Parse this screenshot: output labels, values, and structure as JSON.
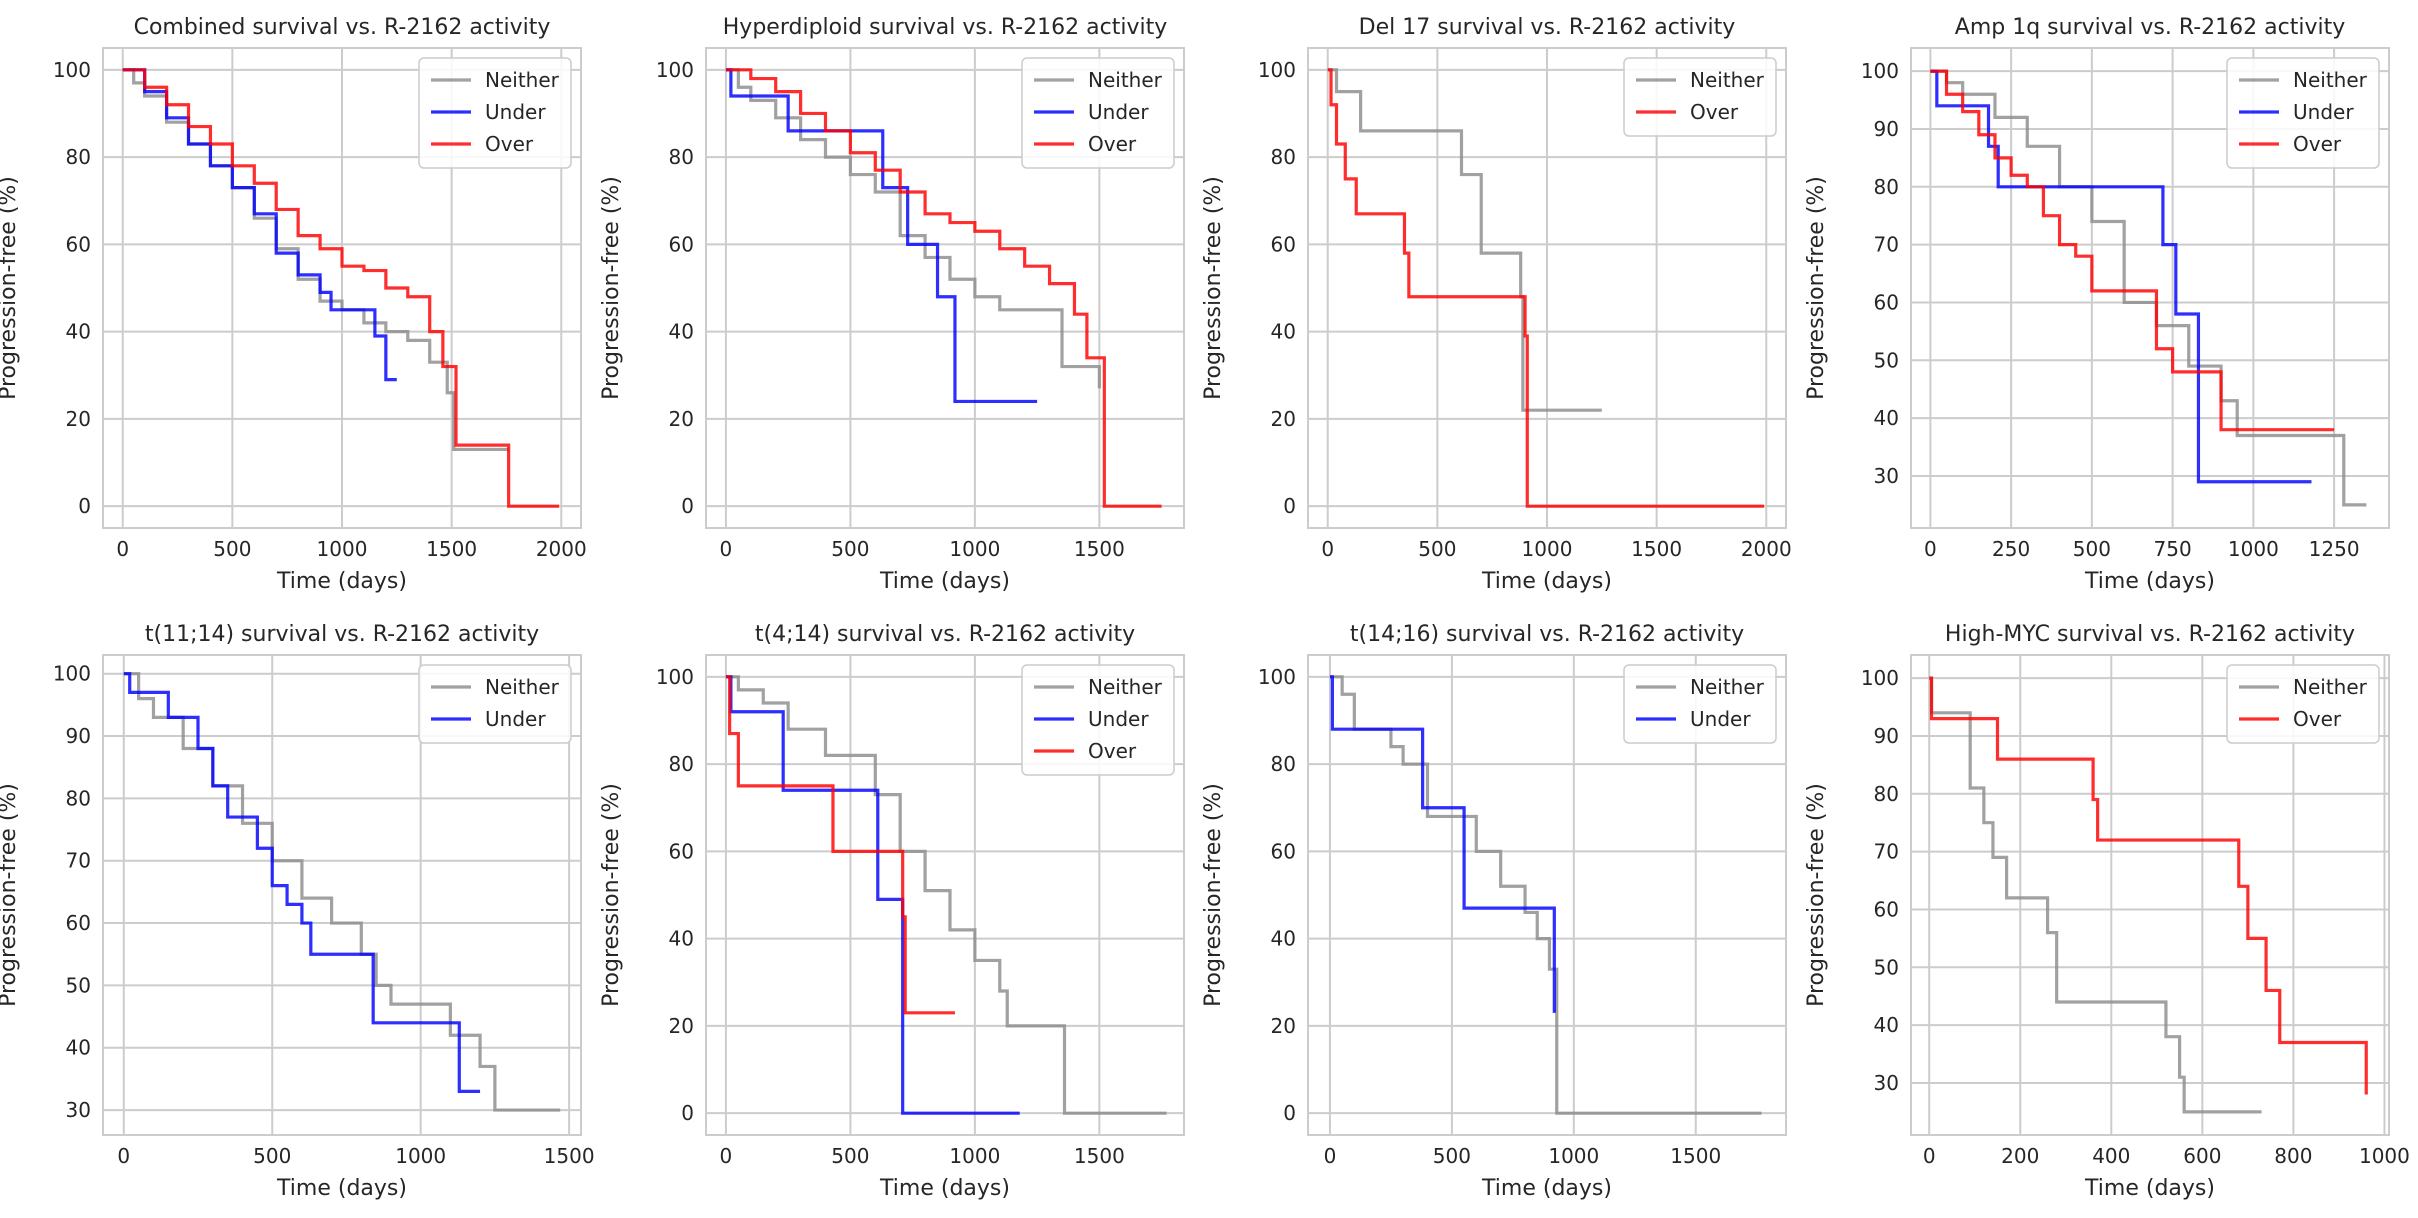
{
  "figure": {
    "background": "#ffffff",
    "colors": {
      "Neither": "#8c8c8c",
      "Under": "#0000ff",
      "Over": "#ff0000"
    }
  },
  "chart_data": [
    {
      "type": "line",
      "title": "Combined survival vs. R-2162 activity",
      "xlabel": "Time (days)",
      "ylabel": "Progression-free (%)",
      "xlim": [
        -90,
        2090
      ],
      "ylim": [
        -5,
        105
      ],
      "xticks": [
        0,
        500,
        1000,
        1500,
        2000
      ],
      "yticks": [
        0,
        20,
        40,
        60,
        80,
        100
      ],
      "grid": true,
      "legend_position": "top-right",
      "series": [
        {
          "name": "Neither",
          "color": "#8c8c8c",
          "x": [
            0,
            50,
            100,
            200,
            300,
            400,
            500,
            600,
            700,
            800,
            900,
            1000,
            1100,
            1200,
            1300,
            1400,
            1480,
            1510,
            1760
          ],
          "y": [
            100,
            97,
            94,
            88,
            83,
            78,
            73,
            66,
            59,
            52,
            47,
            45,
            42,
            40,
            38,
            33,
            26,
            13,
            13
          ]
        },
        {
          "name": "Under",
          "color": "#0000ff",
          "x": [
            0,
            100,
            200,
            300,
            400,
            500,
            600,
            700,
            800,
            900,
            950,
            1100,
            1150,
            1200,
            1250
          ],
          "y": [
            100,
            95,
            89,
            83,
            78,
            73,
            67,
            58,
            53,
            49,
            45,
            45,
            39,
            29,
            29
          ]
        },
        {
          "name": "Over",
          "color": "#ff0000",
          "x": [
            0,
            100,
            200,
            300,
            400,
            500,
            600,
            700,
            800,
            900,
            1000,
            1100,
            1200,
            1300,
            1400,
            1460,
            1520,
            1760,
            1990
          ],
          "y": [
            100,
            96,
            92,
            87,
            83,
            78,
            74,
            68,
            62,
            59,
            55,
            54,
            50,
            48,
            40,
            32,
            14,
            0,
            0
          ]
        }
      ]
    },
    {
      "type": "line",
      "title": "Hyperdiploid survival vs. R-2162 activity",
      "xlabel": "Time (days)",
      "ylabel": "Progression-free (%)",
      "xlim": [
        -80,
        1840
      ],
      "ylim": [
        -5,
        105
      ],
      "xticks": [
        0,
        500,
        1000,
        1500
      ],
      "yticks": [
        0,
        20,
        40,
        60,
        80,
        100
      ],
      "grid": true,
      "legend_position": "top-right",
      "series": [
        {
          "name": "Neither",
          "color": "#8c8c8c",
          "x": [
            0,
            50,
            100,
            200,
            300,
            400,
            500,
            600,
            700,
            800,
            900,
            1000,
            1100,
            1200,
            1300,
            1350,
            1400,
            1500
          ],
          "y": [
            100,
            96,
            93,
            89,
            84,
            80,
            76,
            72,
            62,
            57,
            52,
            48,
            45,
            45,
            45,
            32,
            32,
            27
          ]
        },
        {
          "name": "Under",
          "color": "#0000ff",
          "x": [
            0,
            20,
            250,
            500,
            630,
            730,
            850,
            920,
            1250
          ],
          "y": [
            100,
            94,
            86,
            86,
            73,
            60,
            48,
            24,
            24
          ]
        },
        {
          "name": "Over",
          "color": "#ff0000",
          "x": [
            0,
            100,
            200,
            300,
            400,
            500,
            600,
            700,
            800,
            900,
            1000,
            1100,
            1200,
            1300,
            1400,
            1450,
            1520,
            1750
          ],
          "y": [
            100,
            98,
            95,
            90,
            86,
            81,
            77,
            72,
            67,
            65,
            63,
            59,
            55,
            51,
            44,
            34,
            0,
            0
          ]
        }
      ]
    },
    {
      "type": "line",
      "title": "Del 17 survival vs. R-2162 activity",
      "xlabel": "Time (days)",
      "ylabel": "Progression-free (%)",
      "xlim": [
        -90,
        2090
      ],
      "ylim": [
        -5,
        105
      ],
      "xticks": [
        0,
        500,
        1000,
        1500,
        2000
      ],
      "yticks": [
        0,
        20,
        40,
        60,
        80,
        100
      ],
      "grid": true,
      "legend_position": "top-right",
      "series": [
        {
          "name": "Neither",
          "color": "#8c8c8c",
          "x": [
            0,
            40,
            150,
            550,
            610,
            700,
            850,
            880,
            890,
            1250
          ],
          "y": [
            100,
            95,
            86,
            86,
            76,
            58,
            58,
            48,
            22,
            22
          ]
        },
        {
          "name": "Over",
          "color": "#ff0000",
          "x": [
            0,
            15,
            40,
            80,
            130,
            350,
            370,
            880,
            900,
            910,
            1990
          ],
          "y": [
            100,
            92,
            83,
            75,
            67,
            58,
            48,
            48,
            39,
            0,
            0
          ]
        }
      ]
    },
    {
      "type": "line",
      "title": "Amp 1q survival vs. R-2162 activity",
      "xlabel": "Time (days)",
      "ylabel": "Progression-free (%)",
      "xlim": [
        -60,
        1420
      ],
      "ylim": [
        21,
        104
      ],
      "xticks": [
        0,
        250,
        500,
        750,
        1000,
        1250
      ],
      "yticks": [
        30,
        40,
        50,
        60,
        70,
        80,
        90,
        100
      ],
      "grid": true,
      "legend_position": "top-right",
      "series": [
        {
          "name": "Neither",
          "color": "#8c8c8c",
          "x": [
            0,
            50,
            100,
            200,
            300,
            400,
            500,
            600,
            700,
            800,
            850,
            900,
            950,
            1000,
            1250,
            1280,
            1350
          ],
          "y": [
            100,
            98,
            96,
            92,
            87,
            80,
            74,
            60,
            56,
            49,
            49,
            43,
            37,
            37,
            37,
            25,
            25
          ]
        },
        {
          "name": "Under",
          "color": "#0000ff",
          "x": [
            0,
            20,
            180,
            210,
            700,
            720,
            760,
            830,
            1180
          ],
          "y": [
            100,
            94,
            87,
            80,
            80,
            70,
            58,
            29,
            29
          ]
        },
        {
          "name": "Over",
          "color": "#ff0000",
          "x": [
            0,
            50,
            100,
            150,
            200,
            250,
            300,
            350,
            400,
            450,
            500,
            550,
            650,
            700,
            750,
            900,
            1000,
            1250
          ],
          "y": [
            100,
            96,
            93,
            89,
            85,
            82,
            80,
            75,
            70,
            68,
            62,
            62,
            62,
            52,
            48,
            38,
            38,
            38
          ]
        }
      ]
    },
    {
      "type": "line",
      "title": "t(11;14) survival vs. R-2162 activity",
      "xlabel": "Time (days)",
      "ylabel": "Progression-free (%)",
      "xlim": [
        -70,
        1540
      ],
      "ylim": [
        26,
        103
      ],
      "xticks": [
        0,
        500,
        1000,
        1500
      ],
      "yticks": [
        30,
        40,
        50,
        60,
        70,
        80,
        90,
        100
      ],
      "grid": true,
      "legend_position": "top-right",
      "series": [
        {
          "name": "Neither",
          "color": "#8c8c8c",
          "x": [
            0,
            50,
            100,
            200,
            300,
            400,
            500,
            600,
            700,
            800,
            850,
            900,
            1000,
            1100,
            1200,
            1250,
            1470
          ],
          "y": [
            100,
            96,
            93,
            88,
            82,
            76,
            70,
            64,
            60,
            55,
            50,
            47,
            47,
            42,
            37,
            30,
            30
          ]
        },
        {
          "name": "Under",
          "color": "#0000ff",
          "x": [
            0,
            20,
            150,
            250,
            300,
            350,
            450,
            500,
            550,
            600,
            630,
            830,
            840,
            1130,
            1200
          ],
          "y": [
            100,
            97,
            93,
            88,
            82,
            77,
            72,
            66,
            63,
            60,
            55,
            55,
            44,
            33,
            33
          ]
        }
      ]
    },
    {
      "type": "line",
      "title": "t(4;14) survival vs. R-2162 activity",
      "xlabel": "Time (days)",
      "ylabel": "Progression-free (%)",
      "xlim": [
        -80,
        1840
      ],
      "ylim": [
        -5,
        105
      ],
      "xticks": [
        0,
        500,
        1000,
        1500
      ],
      "yticks": [
        0,
        20,
        40,
        60,
        80,
        100
      ],
      "grid": true,
      "legend_position": "top-right",
      "series": [
        {
          "name": "Neither",
          "color": "#8c8c8c",
          "x": [
            0,
            50,
            150,
            250,
            400,
            600,
            700,
            800,
            900,
            1000,
            1100,
            1130,
            1350,
            1360,
            1770
          ],
          "y": [
            100,
            97,
            94,
            88,
            82,
            73,
            60,
            51,
            42,
            35,
            28,
            20,
            20,
            0,
            0
          ]
        },
        {
          "name": "Under",
          "color": "#0000ff",
          "x": [
            0,
            20,
            220,
            230,
            600,
            610,
            700,
            710,
            1180
          ],
          "y": [
            100,
            92,
            92,
            74,
            74,
            49,
            49,
            0,
            0
          ]
        },
        {
          "name": "Over",
          "color": "#ff0000",
          "x": [
            0,
            15,
            50,
            430,
            700,
            710,
            720,
            920
          ],
          "y": [
            100,
            87,
            75,
            60,
            60,
            45,
            23,
            23
          ]
        }
      ]
    },
    {
      "type": "line",
      "title": "t(14;16) survival vs. R-2162 activity",
      "xlabel": "Time (days)",
      "ylabel": "Progression-free (%)",
      "xlim": [
        -90,
        1870
      ],
      "ylim": [
        -5,
        105
      ],
      "xticks": [
        0,
        500,
        1000,
        1500
      ],
      "yticks": [
        0,
        20,
        40,
        60,
        80,
        100
      ],
      "grid": true,
      "legend_position": "top-right",
      "series": [
        {
          "name": "Neither",
          "color": "#8c8c8c",
          "x": [
            0,
            50,
            100,
            250,
            300,
            400,
            550,
            600,
            700,
            800,
            850,
            900,
            930,
            1770
          ],
          "y": [
            100,
            96,
            88,
            84,
            80,
            68,
            68,
            60,
            52,
            46,
            40,
            33,
            0,
            0
          ]
        },
        {
          "name": "Under",
          "color": "#0000ff",
          "x": [
            0,
            10,
            270,
            380,
            550,
            920
          ],
          "y": [
            100,
            88,
            88,
            70,
            47,
            23
          ]
        }
      ]
    },
    {
      "type": "line",
      "title": "High-MYC survival vs. R-2162 activity",
      "xlabel": "Time (days)",
      "ylabel": "Progression-free (%)",
      "xlim": [
        -40,
        1010
      ],
      "ylim": [
        21,
        104
      ],
      "xticks": [
        0,
        200,
        400,
        600,
        800,
        1000
      ],
      "yticks": [
        30,
        40,
        50,
        60,
        70,
        80,
        90,
        100
      ],
      "grid": true,
      "legend_position": "top-right",
      "series": [
        {
          "name": "Neither",
          "color": "#8c8c8c",
          "x": [
            0,
            5,
            70,
            90,
            120,
            140,
            170,
            250,
            260,
            280,
            520,
            550,
            560,
            730
          ],
          "y": [
            100,
            94,
            94,
            81,
            75,
            69,
            62,
            62,
            56,
            44,
            38,
            31,
            25,
            25
          ]
        },
        {
          "name": "Over",
          "color": "#ff0000",
          "x": [
            0,
            5,
            70,
            150,
            360,
            370,
            480,
            680,
            700,
            740,
            770,
            960
          ],
          "y": [
            100,
            93,
            93,
            86,
            79,
            72,
            72,
            64,
            55,
            46,
            37,
            28
          ]
        }
      ]
    }
  ]
}
